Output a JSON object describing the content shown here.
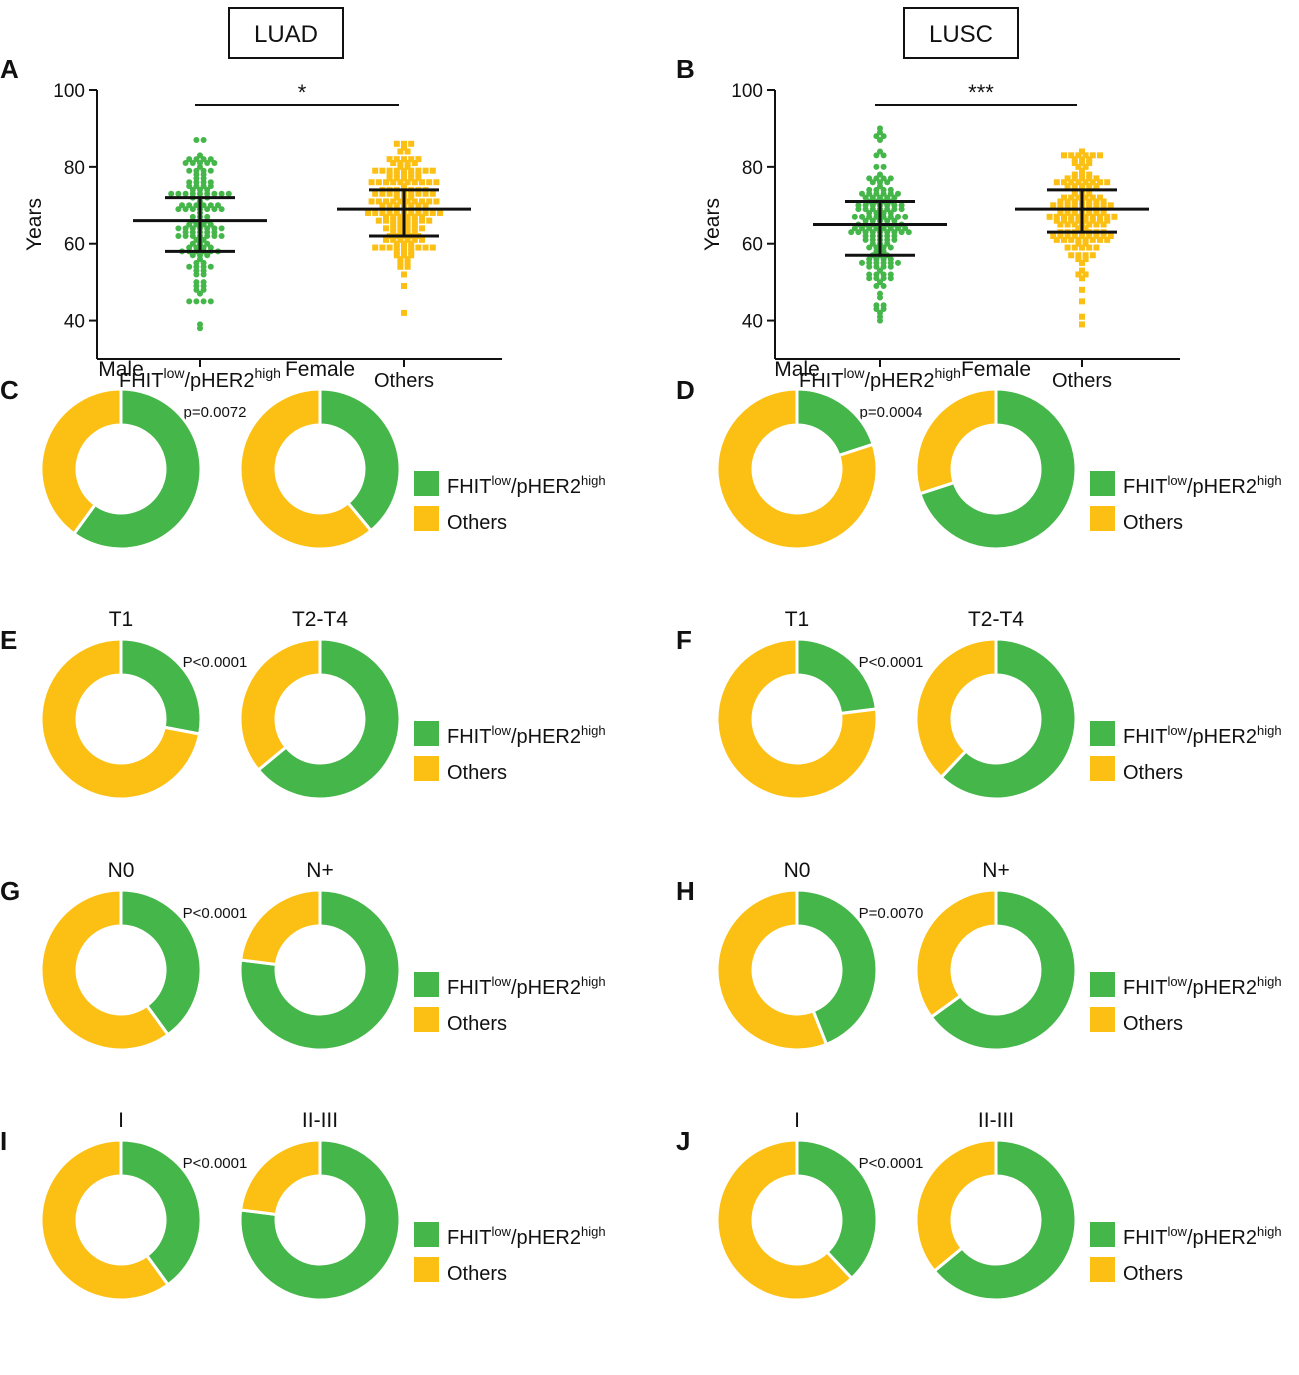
{
  "headers": {
    "left": "LUAD",
    "right": "LUSC"
  },
  "colors": {
    "green": "#45B649",
    "yellow": "#FCC014",
    "axis": "#111111"
  },
  "legend": {
    "series1_main": "FHIT",
    "series1_sup1": "low",
    "series1_mid": "/pHER2",
    "series1_sup2": "high",
    "series2": "Others"
  },
  "chart_data": [
    {
      "panel": "A",
      "type": "scatter",
      "title": "LUAD",
      "ylabel": "Years",
      "ylim": [
        30,
        100
      ],
      "yticks": [
        "40",
        "60",
        "80",
        "100"
      ],
      "significance": "*",
      "x_label_1": {
        "main": "FHIT",
        "sup1": "low",
        "mid": "/pHER2",
        "sup2": "high"
      },
      "x_label_2": "Others",
      "series": [
        {
          "name": "FHITlow/pHER2high",
          "color": "#45B649",
          "median": 66,
          "q1": 58,
          "q3": 72,
          "min": 38,
          "max": 87,
          "n": 130
        },
        {
          "name": "Others",
          "color": "#FCC014",
          "median": 69,
          "q1": 62,
          "q3": 74,
          "min": 42,
          "max": 86,
          "n": 160
        }
      ]
    },
    {
      "panel": "B",
      "type": "scatter",
      "title": "LUSC",
      "ylabel": "Years",
      "ylim": [
        30,
        100
      ],
      "yticks": [
        "40",
        "60",
        "80",
        "100"
      ],
      "significance": "***",
      "x_label_1": {
        "main": "FHIT",
        "sup1": "low",
        "mid": "/pHER2",
        "sup2": "high"
      },
      "x_label_2": "Others",
      "series": [
        {
          "name": "FHITlow/pHER2high",
          "color": "#45B649",
          "median": 65,
          "q1": 57,
          "q3": 71,
          "min": 40,
          "max": 90,
          "n": 150
        },
        {
          "name": "Others",
          "color": "#FCC014",
          "median": 69,
          "q1": 63,
          "q3": 74,
          "min": 39,
          "max": 84,
          "n": 150
        }
      ]
    },
    {
      "panel": "C",
      "type": "pie",
      "label1": "Male",
      "label2": "Female",
      "pvalue": "p=0.0072",
      "green_fraction_1": 0.6,
      "green_fraction_2": 0.39
    },
    {
      "panel": "D",
      "type": "pie",
      "label1": "Male",
      "label2": "Female",
      "pvalue": "p=0.0004",
      "green_fraction_1": 0.2,
      "green_fraction_2": 0.7
    },
    {
      "panel": "E",
      "type": "pie",
      "label1": "T1",
      "label2": "T2-T4",
      "pvalue": "P<0.0001",
      "green_fraction_1": 0.28,
      "green_fraction_2": 0.64
    },
    {
      "panel": "F",
      "type": "pie",
      "label1": "T1",
      "label2": "T2-T4",
      "pvalue": "P<0.0001",
      "green_fraction_1": 0.23,
      "green_fraction_2": 0.62
    },
    {
      "panel": "G",
      "type": "pie",
      "label1": "N0",
      "label2": "N+",
      "pvalue": "P<0.0001",
      "green_fraction_1": 0.4,
      "green_fraction_2": 0.77
    },
    {
      "panel": "H",
      "type": "pie",
      "label1": "N0",
      "label2": "N+",
      "pvalue": "P=0.0070",
      "green_fraction_1": 0.44,
      "green_fraction_2": 0.65
    },
    {
      "panel": "I",
      "type": "pie",
      "label1": "I",
      "label2": "II-III",
      "pvalue": "P<0.0001",
      "green_fraction_1": 0.4,
      "green_fraction_2": 0.77
    },
    {
      "panel": "J",
      "type": "pie",
      "label1": "I",
      "label2": "II-III",
      "pvalue": "P<0.0001",
      "green_fraction_1": 0.38,
      "green_fraction_2": 0.64
    }
  ]
}
